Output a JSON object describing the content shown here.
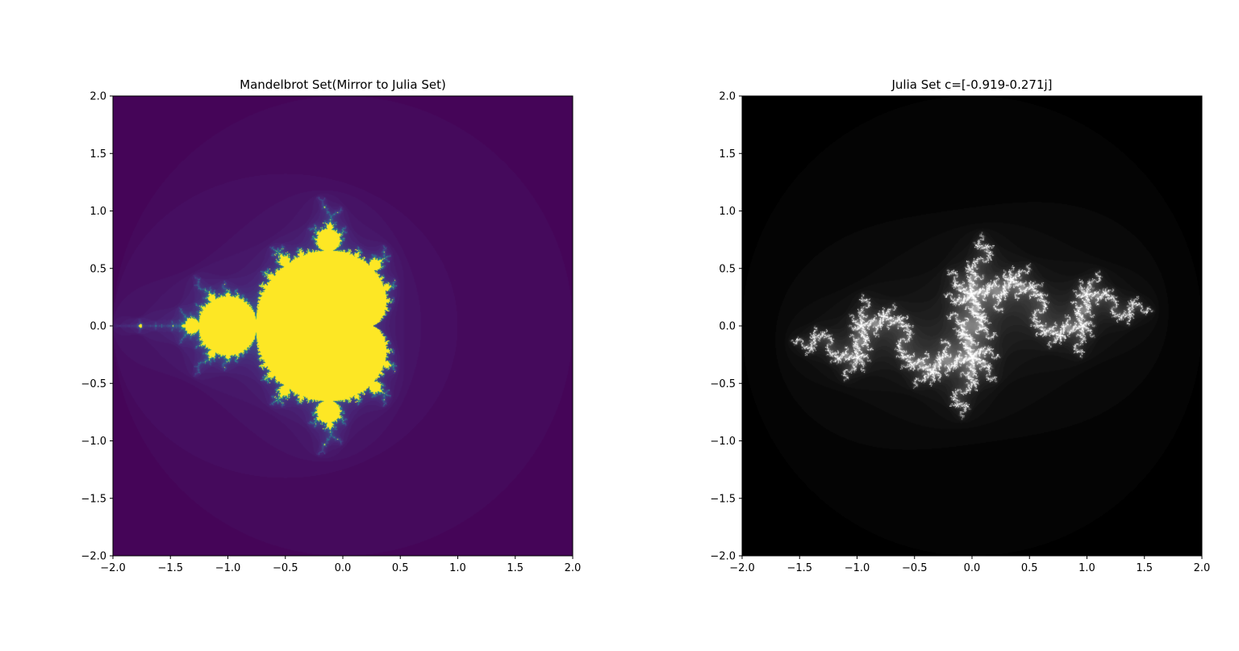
{
  "chart_data": [
    {
      "type": "heatmap",
      "title": "Mandelbrot Set(Mirror to Julia Set)",
      "xlim": [
        -2.0,
        2.0
      ],
      "ylim": [
        -2.0,
        2.0
      ],
      "xticks": [
        -2.0,
        -1.5,
        -1.0,
        -0.5,
        0.0,
        0.5,
        1.0,
        1.5,
        2.0
      ],
      "yticks": [
        -2.0,
        -1.5,
        -1.0,
        -0.5,
        0.0,
        0.5,
        1.0,
        1.5,
        2.0
      ],
      "xtick_labels": [
        "−2.0",
        "−1.5",
        "−1.0",
        "−0.5",
        "0.0",
        "0.5",
        "1.0",
        "1.5",
        "2.0"
      ],
      "ytick_labels": [
        "−2.0",
        "−1.5",
        "−1.0",
        "−0.5",
        "0.0",
        "0.5",
        "1.0",
        "1.5",
        "2.0"
      ],
      "colormap": "viridis",
      "grid": false,
      "set": "mandelbrot",
      "max_iter": 60
    },
    {
      "type": "heatmap",
      "title": "Julia Set c=[-0.919-0.271j]",
      "xlim": [
        -2.0,
        2.0
      ],
      "ylim": [
        -2.0,
        2.0
      ],
      "xticks": [
        -2.0,
        -1.5,
        -1.0,
        -0.5,
        0.0,
        0.5,
        1.0,
        1.5,
        2.0
      ],
      "yticks": [
        -2.0,
        -1.5,
        -1.0,
        -0.5,
        0.0,
        0.5,
        1.0,
        1.5,
        2.0
      ],
      "xtick_labels": [
        "−2.0",
        "−1.5",
        "−1.0",
        "−0.5",
        "0.0",
        "0.5",
        "1.0",
        "1.5",
        "2.0"
      ],
      "ytick_labels": [
        "−2.0",
        "−1.5",
        "−1.0",
        "−0.5",
        "0.0",
        "0.5",
        "1.0",
        "1.5",
        "2.0"
      ],
      "colormap": "gray",
      "grid": false,
      "set": "julia",
      "c_real": -0.919,
      "c_imag": -0.271,
      "max_iter": 60
    }
  ]
}
